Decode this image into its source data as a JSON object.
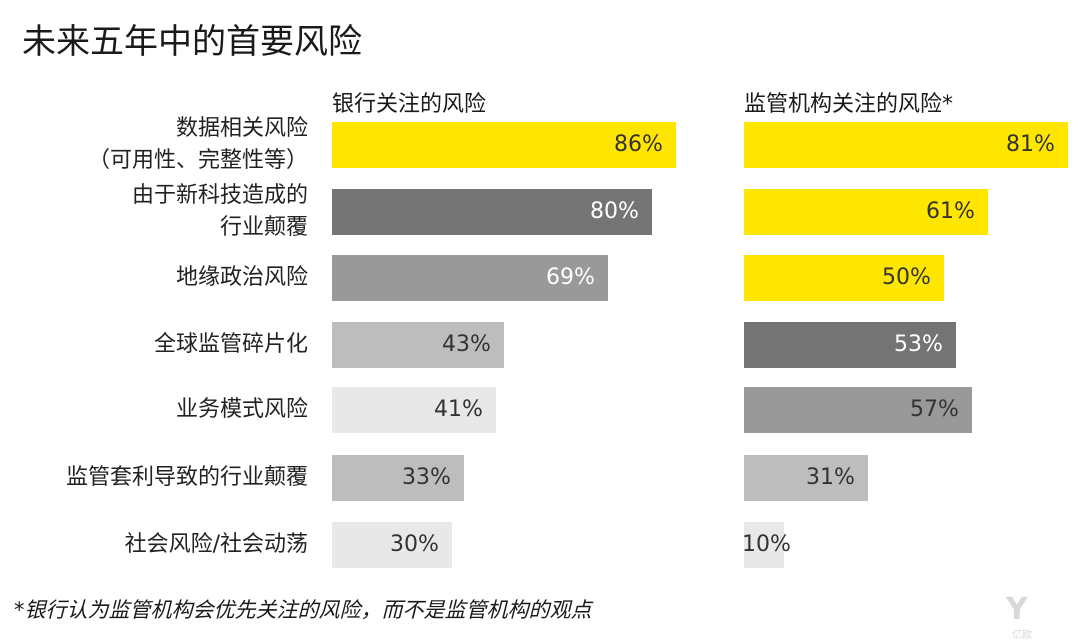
{
  "title": "未来五年中的首要风险",
  "footnote": "*银行认为监管机构会优先关注的风险，而不是监管机构的观点",
  "colors": {
    "yellow": "#FFE600",
    "dark": "#747474",
    "mid": "#999999",
    "light": "#BDBDBD",
    "lighter": "#E8E8E8"
  },
  "chart_data": {
    "type": "bar",
    "orientation": "horizontal",
    "title": "未来五年中的首要风险",
    "categories": [
      [
        "数据相关风险",
        "（可用性、完整性等）"
      ],
      [
        "由于新科技造成的",
        "行业颠覆"
      ],
      [
        "地缘政治风险"
      ],
      [
        "全球监管碎片化"
      ],
      [
        "业务模式风险"
      ],
      [
        "监管套利导致的行业颠覆"
      ],
      [
        "社会风险/社会动荡"
      ]
    ],
    "series": [
      {
        "name": "银行关注的风险",
        "values": [
          86,
          80,
          69,
          43,
          41,
          33,
          30
        ],
        "labels": [
          "86%",
          "80%",
          "69%",
          "43%",
          "41%",
          "33%",
          "30%"
        ],
        "colors": [
          "#FFE600",
          "#747474",
          "#999999",
          "#BDBDBD",
          "#E8E8E8",
          "#BDBDBD",
          "#E8E8E8"
        ],
        "label_colors": [
          "#333333",
          "#ffffff",
          "#ffffff",
          "#333333",
          "#333333",
          "#333333",
          "#333333"
        ]
      },
      {
        "name": "监管机构关注的风险*",
        "values": [
          81,
          61,
          50,
          53,
          57,
          31,
          10
        ],
        "labels": [
          "81%",
          "61%",
          "50%",
          "53%",
          "57%",
          "31%",
          "10%"
        ],
        "colors": [
          "#FFE600",
          "#FFE600",
          "#FFE600",
          "#747474",
          "#999999",
          "#BDBDBD",
          "#E8E8E8"
        ],
        "label_colors": [
          "#333333",
          "#333333",
          "#333333",
          "#ffffff",
          "#333333",
          "#333333",
          "#333333"
        ]
      }
    ],
    "xlim": [
      0,
      100
    ]
  }
}
